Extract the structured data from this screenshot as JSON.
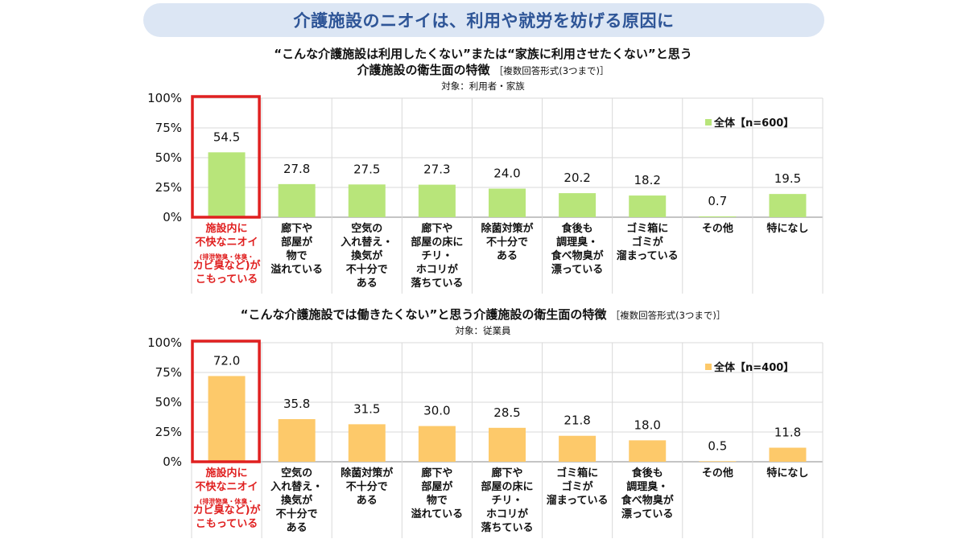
{
  "banner_title": "介護施設のニオイは、利用や就労を妨げる原因に",
  "chart_data": [
    {
      "type": "bar",
      "title_line1": "“こんな介護施設は利用したくない”または“家族に利用させたくない”と思う",
      "title_line2": "介護施設の衛生面の特徴",
      "subtitle": "［複数回答形式(3つまで)］",
      "target": "対象：利用者・家族",
      "yticks": [
        "100%",
        "75%",
        "50%",
        "25%",
        "0%"
      ],
      "ylim": [
        0,
        100
      ],
      "grid": true,
      "legend_position": "top-right",
      "series": [
        {
          "name": "全体【n=600】",
          "color": "#b8e57a",
          "values": [
            54.5,
            27.8,
            27.5,
            27.3,
            24.0,
            20.2,
            18.2,
            0.7,
            19.5
          ]
        }
      ],
      "value_labels": [
        "54.5",
        "27.8",
        "27.5",
        "27.3",
        "24.0",
        "20.2",
        "18.2",
        "0.7",
        "19.5"
      ],
      "categories": [
        [
          "施設内に",
          "不快なニオイ",
          "(排泄物臭・体臭・",
          "カビ臭など)が",
          "こもっている"
        ],
        [
          "廊下や",
          "部屋が",
          "物で",
          "溢れている"
        ],
        [
          "空気の",
          "入れ替え・",
          "換気が",
          "不十分で",
          "ある"
        ],
        [
          "廊下や",
          "部屋の床に",
          "チリ・",
          "ホコリが",
          "落ちている"
        ],
        [
          "除菌対策が",
          "不十分で",
          "ある"
        ],
        [
          "食後も",
          "調理臭・",
          "食べ物臭が",
          "漂っている"
        ],
        [
          "ゴミ箱に",
          "ゴミが",
          "溜まっている"
        ],
        [
          "その他"
        ],
        [
          "特になし"
        ]
      ],
      "highlight_index": 0,
      "highlight_color": "#e02020"
    },
    {
      "type": "bar",
      "title_line1": "“こんな介護施設では働きたくない”と思う介護施設の衛生面の特徴",
      "title_line2": "",
      "subtitle": "［複数回答形式(3つまで)］",
      "target": "対象：従業員",
      "yticks": [
        "100%",
        "75%",
        "50%",
        "25%",
        "0%"
      ],
      "ylim": [
        0,
        100
      ],
      "grid": true,
      "legend_position": "top-right",
      "series": [
        {
          "name": "全体【n=400】",
          "color": "#fdc96a",
          "values": [
            72.0,
            35.8,
            31.5,
            30.0,
            28.5,
            21.8,
            18.0,
            0.5,
            11.8
          ]
        }
      ],
      "value_labels": [
        "72.0",
        "35.8",
        "31.5",
        "30.0",
        "28.5",
        "21.8",
        "18.0",
        "0.5",
        "11.8"
      ],
      "categories": [
        [
          "施設内に",
          "不快なニオイ",
          "(排泄物臭・体臭・",
          "カビ臭など)が",
          "こもっている"
        ],
        [
          "空気の",
          "入れ替え・",
          "換気が",
          "不十分で",
          "ある"
        ],
        [
          "除菌対策が",
          "不十分で",
          "ある"
        ],
        [
          "廊下や",
          "部屋が",
          "物で",
          "溢れている"
        ],
        [
          "廊下や",
          "部屋の床に",
          "チリ・",
          "ホコリが",
          "落ちている"
        ],
        [
          "ゴミ箱に",
          "ゴミが",
          "溜まっている"
        ],
        [
          "食後も",
          "調理臭・",
          "食べ物臭が",
          "漂っている"
        ],
        [
          "その他"
        ],
        [
          "特になし"
        ]
      ],
      "highlight_index": 0,
      "highlight_color": "#e02020"
    }
  ]
}
